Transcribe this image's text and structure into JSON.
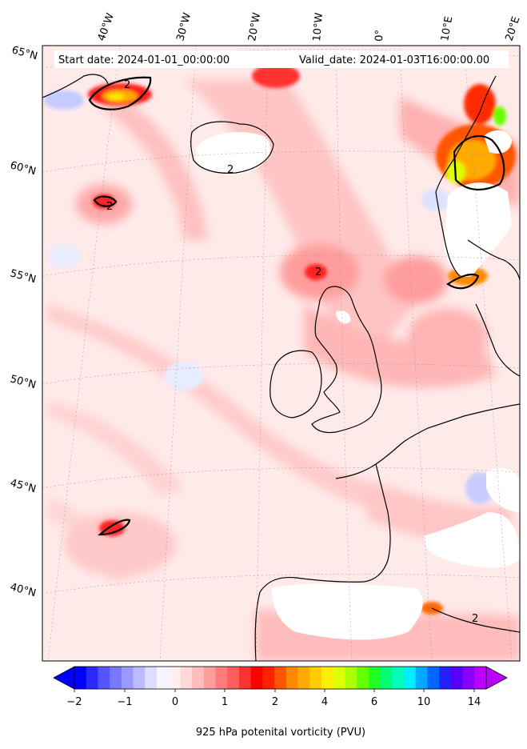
{
  "header": {
    "start_date": "Start date: 2024-01-01_00:00:00",
    "valid_date": "Valid_date: 2024-01-03T16:00:00.00"
  },
  "longitude_labels": [
    "40°W",
    "30°W",
    "20°W",
    "10°W",
    "0°",
    "10°E",
    "20°E"
  ],
  "latitude_labels": [
    "65°N",
    "60°N",
    "55°N",
    "50°N",
    "45°N",
    "40°N"
  ],
  "contour_label": "2",
  "colorbar": {
    "title": "925 hPa potenital vorticity (PVU)",
    "tick_labels": [
      "−2",
      "−1",
      "0",
      "1",
      "2",
      "4",
      "6",
      "10",
      "14"
    ],
    "colors": [
      "#0000ff",
      "#2a2aff",
      "#5555ff",
      "#7777ff",
      "#9999ff",
      "#bbbbff",
      "#ddddff",
      "#f5f5ff",
      "#ffefef",
      "#ffd8d8",
      "#ffbcbc",
      "#ff9c9c",
      "#ff7c7c",
      "#ff5c5c",
      "#ff3030",
      "#ff0000",
      "#ff2200",
      "#ff5500",
      "#ff8800",
      "#ffaa00",
      "#ffcc00",
      "#ffee00",
      "#ddff00",
      "#aaff00",
      "#66ff00",
      "#22ff22",
      "#00ff77",
      "#00ffbb",
      "#00eeff",
      "#00aaff",
      "#0066ff",
      "#2222ff",
      "#5500ff",
      "#8800ff",
      "#bb00ff"
    ]
  }
}
